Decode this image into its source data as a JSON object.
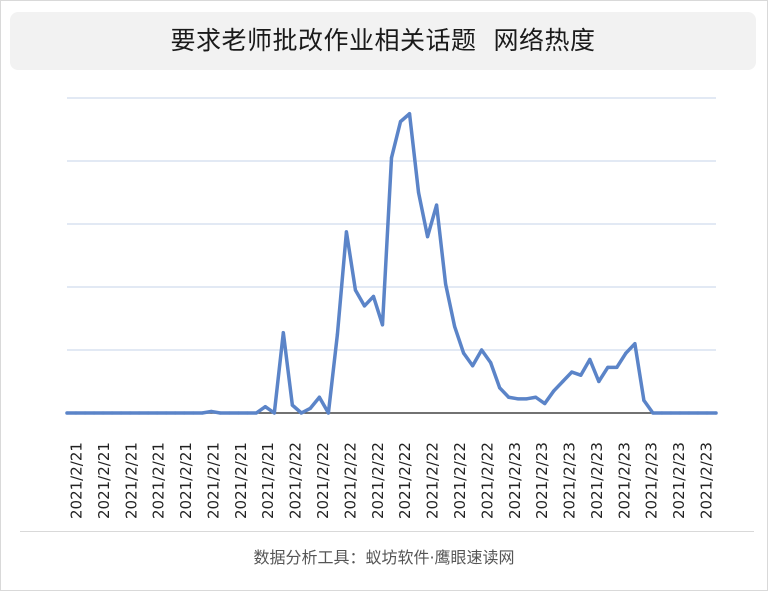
{
  "title": "要求老师批改作业相关话题  网络热度",
  "footer": "数据分析工具：蚁坊软件·鹰眼速读网",
  "colors": {
    "line": "#5b84c8",
    "grid": "#c5d3e8",
    "axis": "#444444",
    "title_bg": "#f2f2f2"
  },
  "chart_data": {
    "type": "line",
    "title": "要求老师批改作业相关话题  网络热度",
    "xlabel": "",
    "ylabel": "",
    "ylim": [
      0,
      100
    ],
    "grid": true,
    "y_gridlines": [
      20,
      40,
      60,
      80,
      100
    ],
    "show_y_tick_labels": false,
    "x_tick_labels": [
      "2021/2/21",
      "2021/2/21",
      "2021/2/21",
      "2021/2/21",
      "2021/2/21",
      "2021/2/21",
      "2021/2/21",
      "2021/2/21",
      "2021/2/22",
      "2021/2/22",
      "2021/2/22",
      "2021/2/22",
      "2021/2/22",
      "2021/2/22",
      "2021/2/22",
      "2021/2/22",
      "2021/2/23",
      "2021/2/23",
      "2021/2/23",
      "2021/2/23",
      "2021/2/23",
      "2021/2/23",
      "2021/2/23",
      "2021/2/23"
    ],
    "series": [
      {
        "values": [
          0,
          0,
          0,
          0,
          0,
          0,
          0,
          0,
          0,
          0,
          0,
          0,
          0,
          0,
          0,
          0,
          0.5,
          0,
          0,
          0,
          0,
          0,
          2,
          0,
          25.5,
          2.5,
          0,
          1.5,
          5,
          0,
          25,
          57.5,
          39,
          34,
          37,
          28,
          81,
          92.5,
          95,
          70,
          56,
          66,
          41,
          27.5,
          19,
          15,
          20,
          16,
          8,
          5,
          4.5,
          4.5,
          5,
          3,
          7,
          10,
          13,
          12,
          17,
          10,
          14.5,
          14.5,
          19,
          22,
          4,
          0,
          0,
          0,
          0,
          0,
          0,
          0,
          0
        ]
      }
    ]
  }
}
